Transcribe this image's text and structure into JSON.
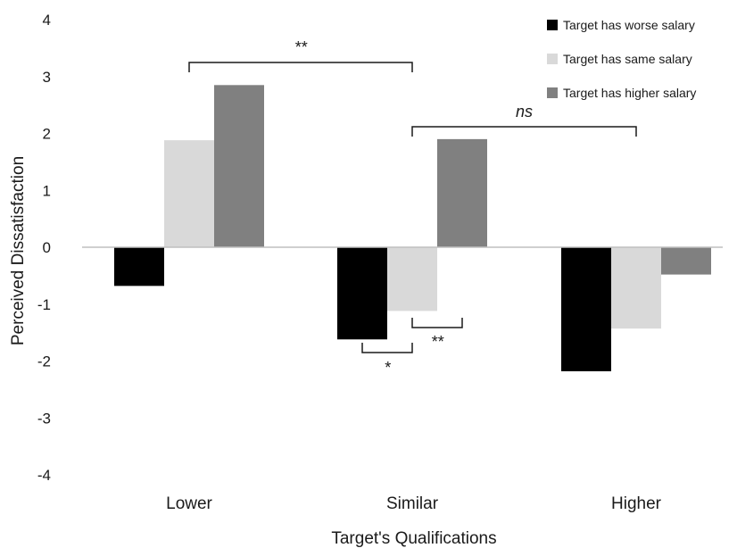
{
  "chart_data": {
    "type": "bar",
    "title": "",
    "xlabel": "Target's Qualifications",
    "ylabel": "Perceived Dissatisfaction",
    "ylim": [
      -4,
      4
    ],
    "yticks": [
      4,
      3,
      2,
      1,
      0,
      -1,
      -2,
      -3,
      -4
    ],
    "categories": [
      "Lower",
      "Similar",
      "Higher"
    ],
    "series": [
      {
        "name": "Target has worse salary",
        "color": "#000000",
        "values": [
          -0.68,
          -1.62,
          -2.18
        ]
      },
      {
        "name": "Target has same salary",
        "color": "#d9d9d9",
        "values": [
          1.88,
          -1.12,
          -1.43
        ]
      },
      {
        "name": "Target has higher salary",
        "color": "#808080",
        "values": [
          2.85,
          1.9,
          -0.48
        ]
      }
    ],
    "grid": false,
    "legend_position": "top-right",
    "annotations": [
      {
        "label": "**",
        "between": "Lower / Target has same salary and Similar / Target has same salary"
      },
      {
        "label": "ns",
        "between": "Similar / Target has same salary and Higher / Target has same salary"
      },
      {
        "label": "*",
        "between": "Similar / Target has worse salary and Similar / Target has same salary"
      },
      {
        "label": "**",
        "between": "Similar / Target has same salary and Similar / Target has higher salary"
      }
    ]
  }
}
